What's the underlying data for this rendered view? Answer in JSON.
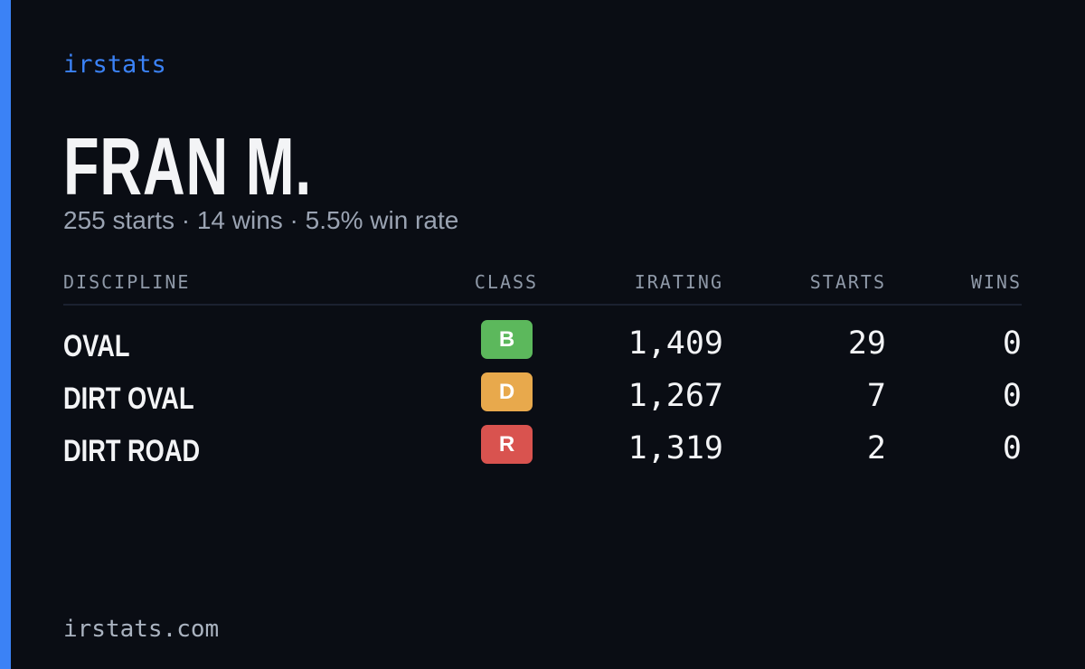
{
  "brand": "irstats",
  "name": "FRAN M.",
  "summary": "255 starts · 14 wins · 5.5% win rate",
  "table": {
    "headers": [
      "DISCIPLINE",
      "CLASS",
      "IRATING",
      "STARTS",
      "WINS"
    ],
    "rows": [
      {
        "discipline": "OVAL",
        "class": "B",
        "class_color": "#5cb85c",
        "irating": "1,409",
        "starts": "29",
        "wins": "0"
      },
      {
        "discipline": "DIRT OVAL",
        "class": "D",
        "class_color": "#e8a94c",
        "irating": "1,267",
        "starts": "7",
        "wins": "0"
      },
      {
        "discipline": "DIRT ROAD",
        "class": "R",
        "class_color": "#d9534f",
        "irating": "1,319",
        "starts": "2",
        "wins": "0"
      }
    ]
  },
  "footer": "irstats.com"
}
